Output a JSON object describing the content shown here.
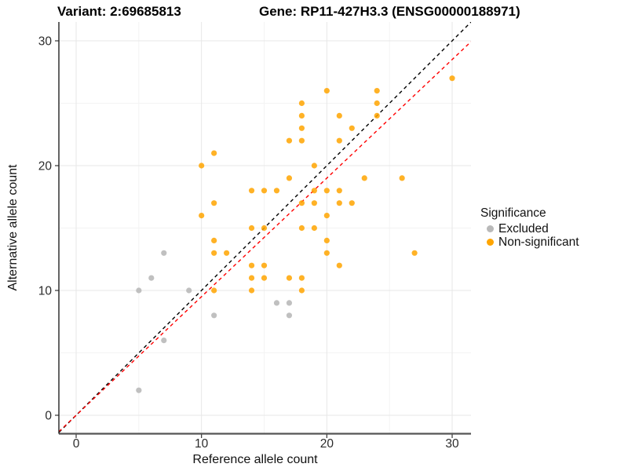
{
  "figure": {
    "title_variant": "Variant: 2:69685813",
    "title_gene": "Gene: RP11-427H3.3 (ENSG00000188971)"
  },
  "chart_data": {
    "type": "scatter",
    "title": "Variant: 2:69685813 / Gene: RP11-427H3.3 (ENSG00000188971)",
    "xlabel": "Reference allele count",
    "ylabel": "Alternative allele count",
    "xlim": [
      -1.4,
      31.5
    ],
    "ylim": [
      -1.5,
      31.5
    ],
    "x_ticks": [
      0,
      10,
      20,
      30
    ],
    "y_ticks": [
      0,
      10,
      20,
      30
    ],
    "x_minor_gridlines": [
      5,
      15,
      25
    ],
    "y_minor_gridlines": [
      5,
      15,
      25
    ],
    "grid": "on",
    "legend_position": "right",
    "legend": {
      "title": "Significance",
      "entries": [
        {
          "label": "Excluded",
          "color": "#b9b9b9"
        },
        {
          "label": "Non-significant",
          "color": "#ffa500"
        }
      ]
    },
    "series": [
      {
        "name": "Excluded",
        "color": "#b9b9b9",
        "points": [
          [
            5,
            2
          ],
          [
            5,
            10
          ],
          [
            6,
            11
          ],
          [
            7,
            6
          ],
          [
            7,
            13
          ],
          [
            9,
            10
          ],
          [
            11,
            8
          ],
          [
            16,
            9
          ],
          [
            17,
            8
          ],
          [
            17,
            9
          ]
        ]
      },
      {
        "name": "Non-significant",
        "color": "#ffa500",
        "points": [
          [
            10,
            16
          ],
          [
            10,
            20
          ],
          [
            11,
            10
          ],
          [
            11,
            13
          ],
          [
            11,
            14
          ],
          [
            11,
            17
          ],
          [
            11,
            21
          ],
          [
            12,
            13
          ],
          [
            14,
            10
          ],
          [
            14,
            11
          ],
          [
            14,
            12
          ],
          [
            14,
            15
          ],
          [
            14,
            18
          ],
          [
            15,
            11
          ],
          [
            15,
            12
          ],
          [
            15,
            15
          ],
          [
            15,
            18
          ],
          [
            16,
            18
          ],
          [
            17,
            11
          ],
          [
            17,
            19
          ],
          [
            17,
            22
          ],
          [
            18,
            10
          ],
          [
            18,
            11
          ],
          [
            18,
            15
          ],
          [
            18,
            17
          ],
          [
            18,
            22
          ],
          [
            18,
            23
          ],
          [
            18,
            24
          ],
          [
            18,
            25
          ],
          [
            19,
            15
          ],
          [
            19,
            17
          ],
          [
            19,
            18
          ],
          [
            19,
            20
          ],
          [
            20,
            13
          ],
          [
            20,
            14
          ],
          [
            20,
            16
          ],
          [
            20,
            18
          ],
          [
            20,
            26
          ],
          [
            21,
            12
          ],
          [
            21,
            17
          ],
          [
            21,
            18
          ],
          [
            21,
            22
          ],
          [
            21,
            24
          ],
          [
            22,
            17
          ],
          [
            22,
            23
          ],
          [
            23,
            19
          ],
          [
            24,
            24
          ],
          [
            24,
            25
          ],
          [
            24,
            26
          ],
          [
            26,
            19
          ],
          [
            27,
            13
          ],
          [
            30,
            27
          ]
        ]
      }
    ],
    "reference_lines": [
      {
        "name": "identity-line",
        "color": "#000000",
        "slope": 1,
        "intercept": 0,
        "style": "dashed"
      },
      {
        "name": "expected-ratio-line",
        "color": "#ff0000",
        "slope": 0.95,
        "intercept": 0,
        "style": "dashed"
      }
    ]
  }
}
